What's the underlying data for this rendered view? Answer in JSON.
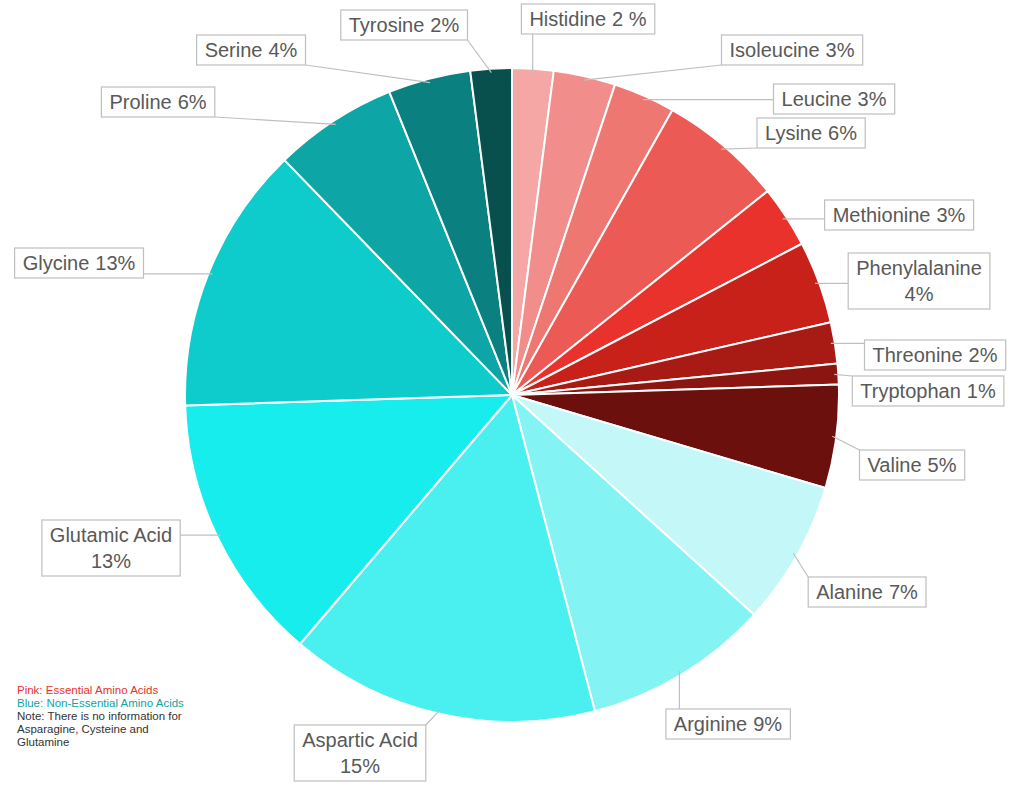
{
  "chart_data": {
    "type": "pie",
    "categories": [
      "Histidine",
      "Isoleucine",
      "Leucine",
      "Lysine",
      "Methionine",
      "Phenylalanine",
      "Threonine",
      "Tryptophan",
      "Valine",
      "Alanine",
      "Arginine",
      "Aspartic Acid",
      "Glutamic Acid",
      "Glycine",
      "Proline",
      "Serine",
      "Tyrosine"
    ],
    "values": [
      2,
      3,
      3,
      6,
      3,
      4,
      2,
      1,
      5,
      7,
      9,
      15,
      13,
      13,
      6,
      4,
      2
    ],
    "value_labels": [
      "2 %",
      "3%",
      "3%",
      "6%",
      "3%",
      "4%",
      "2%",
      "1%",
      "5%",
      "7%",
      "9%",
      "15%",
      "13%",
      "13%",
      "6%",
      "4%",
      "2%"
    ],
    "colors": [
      "#f4a7a5",
      "#f18e8b",
      "#ee7772",
      "#eb5a55",
      "#e8322b",
      "#c8211a",
      "#a81a14",
      "#8b1510",
      "#6b100c",
      "#c4f8f8",
      "#84f3f3",
      "#4af0f0",
      "#17eded",
      "#0fcccc",
      "#0da5a5",
      "#0b8080",
      "#07504e"
    ],
    "data_labels": true,
    "annotations": [
      {
        "text": "Pink: Essential Amino Acids",
        "color": "#e8322b"
      },
      {
        "text": "Blue: Non-Essential Amino Acids",
        "color": "#0da5a5"
      },
      {
        "text": "Note: There is no information for Asparagine, Cysteine and Glutamine",
        "color": "#333333"
      }
    ]
  }
}
